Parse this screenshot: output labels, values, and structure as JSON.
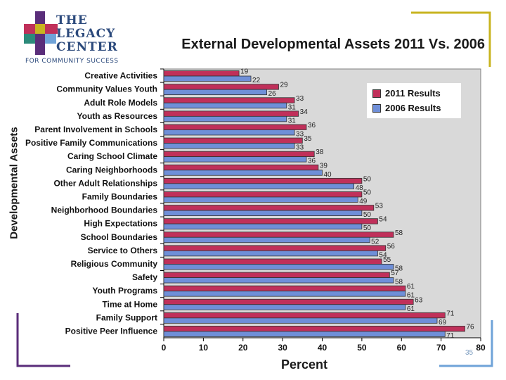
{
  "logo": {
    "line1": "THE",
    "line2": "LEGACY",
    "line3": "CENTER",
    "tagline": "FOR COMMUNITY SUCCESS"
  },
  "page_number": "35",
  "colors": {
    "series_2011": "#c0305a",
    "series_2006": "#6f8fd8",
    "accent_gold": "#c8b420",
    "accent_purple": "#5a2d7a",
    "accent_blue": "#6fa3d8"
  },
  "chart_data": {
    "type": "bar",
    "orientation": "horizontal",
    "title": "External Developmental Assets 2011 Vs. 2006",
    "xlabel": "Percent",
    "ylabel": "Developmental Assets",
    "xlim": [
      0,
      80
    ],
    "xticks": [
      0,
      10,
      20,
      30,
      40,
      50,
      60,
      70,
      80
    ],
    "legend_position": "top-right",
    "categories": [
      "Creative Activities",
      "Community Values Youth",
      "Adult Role Models",
      "Youth as Resources",
      "Parent Involvement in Schools",
      "Positive Family Communications",
      "Caring School Climate",
      "Caring Neighborhoods",
      "Other Adult Relationships",
      "Family Boundaries",
      "Neighborhood Boundaries",
      "High Expectations",
      "School Boundaries",
      "Service to Others",
      "Religious Community",
      "Safety",
      "Youth Programs",
      "Time at Home",
      "Family Support",
      "Positive Peer Influence"
    ],
    "series": [
      {
        "name": "2011 Results",
        "values": [
          19,
          29,
          33,
          34,
          36,
          35,
          38,
          39,
          50,
          50,
          53,
          54,
          58,
          56,
          55,
          57,
          61,
          63,
          71,
          76
        ]
      },
      {
        "name": "2006 Results",
        "values": [
          22,
          26,
          31,
          31,
          33,
          33,
          36,
          40,
          48,
          49,
          50,
          50,
          52,
          54,
          58,
          58,
          61,
          61,
          69,
          71
        ]
      }
    ]
  }
}
